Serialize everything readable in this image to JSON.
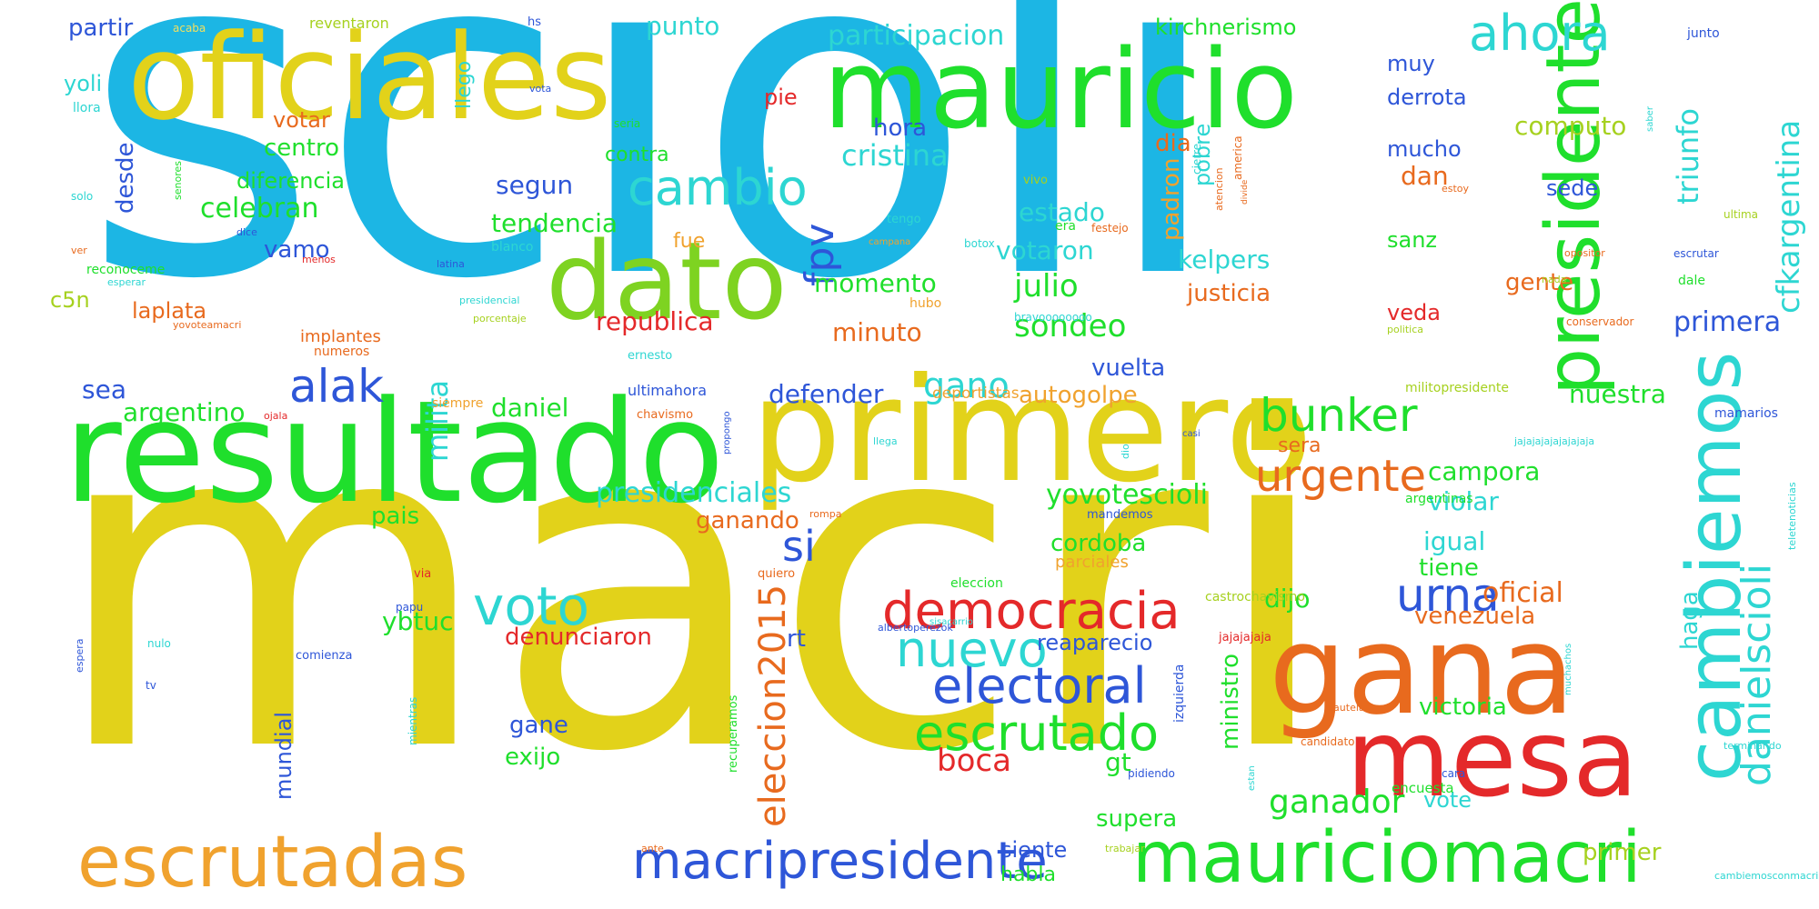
{
  "words": [
    {
      "text": "macri",
      "color": "#e2d21a"
    },
    {
      "text": "scioli",
      "color": "#1cb6e4"
    },
    {
      "text": "resultado",
      "color": "#1fdf2c"
    },
    {
      "text": "primero",
      "color": "#e2d21a"
    },
    {
      "text": "oficiales",
      "color": "#e2d21a"
    },
    {
      "text": "mauricio",
      "color": "#1fdf2c"
    },
    {
      "text": "dato",
      "color": "#7ed321"
    },
    {
      "text": "gana",
      "color": "#e86a1e"
    },
    {
      "text": "mesa",
      "color": "#e4292a"
    },
    {
      "text": "mauriciomacri",
      "color": "#1fdf2c"
    },
    {
      "text": "escrutadas",
      "color": "#f0a22e"
    },
    {
      "text": "presidente",
      "color": "#1fdf2c"
    },
    {
      "text": "cambiemos",
      "color": "#2dd6d2"
    },
    {
      "text": "macripresidente",
      "color": "#2e56d8"
    },
    {
      "text": "democracia",
      "color": "#e4292a"
    },
    {
      "text": "electoral",
      "color": "#2e56d8"
    },
    {
      "text": "escrutado",
      "color": "#1fdf2c"
    },
    {
      "text": "voto",
      "color": "#2dd6d2"
    },
    {
      "text": "nuevo",
      "color": "#2dd6d2"
    },
    {
      "text": "cambio",
      "color": "#2dd6d2"
    },
    {
      "text": "alak",
      "color": "#2e56d8"
    },
    {
      "text": "ahora",
      "color": "#2dd6d2"
    },
    {
      "text": "bunker",
      "color": "#1fdf2c"
    },
    {
      "text": "urgente",
      "color": "#e86a1e"
    },
    {
      "text": "urna",
      "color": "#2e56d8"
    },
    {
      "text": "danielscioli",
      "color": "#2dd6d2"
    },
    {
      "text": "cfkargentina",
      "color": "#2dd6d2"
    },
    {
      "text": "eleccion2015",
      "color": "#e86a1e"
    },
    {
      "text": "ganador",
      "color": "#1fdf2c"
    },
    {
      "text": "fpv",
      "color": "#2e56d8"
    },
    {
      "text": "si",
      "color": "#2e56d8"
    },
    {
      "text": "boca",
      "color": "#e4292a"
    },
    {
      "text": "julio",
      "color": "#1fdf2c"
    },
    {
      "text": "sondeo",
      "color": "#1fdf2c"
    },
    {
      "text": "cristina",
      "color": "#2dd6d2"
    },
    {
      "text": "gano",
      "color": "#2dd6d2"
    },
    {
      "text": "triunfo",
      "color": "#2dd6d2"
    },
    {
      "text": "primera",
      "color": "#2e56d8"
    },
    {
      "text": "participacion",
      "color": "#2dd6d2"
    },
    {
      "text": "punto",
      "color": "#2dd6d2"
    },
    {
      "text": "kirchnerismo",
      "color": "#1fdf2c"
    },
    {
      "text": "partir",
      "color": "#2e56d8"
    },
    {
      "text": "computo",
      "color": "#a6d11f"
    },
    {
      "text": "hora",
      "color": "#2e56d8"
    },
    {
      "text": "centro",
      "color": "#1fdf2c"
    },
    {
      "text": "segun",
      "color": "#2e56d8"
    },
    {
      "text": "tendencia",
      "color": "#1fdf2c"
    },
    {
      "text": "celebran",
      "color": "#1fdf2c"
    },
    {
      "text": "diferencia",
      "color": "#1fdf2c"
    },
    {
      "text": "vamo",
      "color": "#2e56d8"
    },
    {
      "text": "desde",
      "color": "#2e56d8"
    },
    {
      "text": "c5n",
      "color": "#a6d11f"
    },
    {
      "text": "laplata",
      "color": "#e86a1e"
    },
    {
      "text": "momento",
      "color": "#1fdf2c"
    },
    {
      "text": "republica",
      "color": "#e4292a"
    },
    {
      "text": "minuto",
      "color": "#e86a1e"
    },
    {
      "text": "estado",
      "color": "#2dd6d2"
    },
    {
      "text": "votaron",
      "color": "#2dd6d2"
    },
    {
      "text": "kelpers",
      "color": "#2dd6d2"
    },
    {
      "text": "justicia",
      "color": "#e86a1e"
    },
    {
      "text": "padron",
      "color": "#f0a22e"
    },
    {
      "text": "pobre",
      "color": "#2dd6d2"
    },
    {
      "text": "dia",
      "color": "#e86a1e"
    },
    {
      "text": "dan",
      "color": "#e86a1e"
    },
    {
      "text": "sanz",
      "color": "#1fdf2c"
    },
    {
      "text": "veda",
      "color": "#e4292a"
    },
    {
      "text": "gente",
      "color": "#e86a1e"
    },
    {
      "text": "sede",
      "color": "#2e56d8"
    },
    {
      "text": "mucho",
      "color": "#2e56d8"
    },
    {
      "text": "derrota",
      "color": "#2e56d8"
    },
    {
      "text": "muy",
      "color": "#2e56d8"
    },
    {
      "text": "yoli",
      "color": "#2dd6d2"
    },
    {
      "text": "llego",
      "color": "#2dd6d2"
    },
    {
      "text": "votar",
      "color": "#e86a1e"
    },
    {
      "text": "pie",
      "color": "#e4292a"
    },
    {
      "text": "contra",
      "color": "#1fdf2c"
    },
    {
      "text": "fue",
      "color": "#f0a22e"
    },
    {
      "text": "argentino",
      "color": "#1fdf2c"
    },
    {
      "text": "sea",
      "color": "#2e56d8"
    },
    {
      "text": "daniel",
      "color": "#1fdf2c"
    },
    {
      "text": "milita",
      "color": "#2dd6d2"
    },
    {
      "text": "defender",
      "color": "#2e56d8"
    },
    {
      "text": "autogolpe",
      "color": "#f0a22e"
    },
    {
      "text": "vuelta",
      "color": "#2e56d8"
    },
    {
      "text": "nuestra",
      "color": "#1fdf2c"
    },
    {
      "text": "campora",
      "color": "#1fdf2c"
    },
    {
      "text": "sera",
      "color": "#e86a1e"
    },
    {
      "text": "violar",
      "color": "#2dd6d2"
    },
    {
      "text": "presidenciales",
      "color": "#2dd6d2"
    },
    {
      "text": "yovotescioli",
      "color": "#1fdf2c"
    },
    {
      "text": "pais",
      "color": "#1fdf2c"
    },
    {
      "text": "ganando",
      "color": "#e86a1e"
    },
    {
      "text": "cordoba",
      "color": "#1fdf2c"
    },
    {
      "text": "igual",
      "color": "#2dd6d2"
    },
    {
      "text": "tiene",
      "color": "#1fdf2c"
    },
    {
      "text": "dijo",
      "color": "#1fdf2c"
    },
    {
      "text": "oficial",
      "color": "#e86a1e"
    },
    {
      "text": "venezuela",
      "color": "#e86a1e"
    },
    {
      "text": "haga",
      "color": "#2dd6d2"
    },
    {
      "text": "ybtuc",
      "color": "#1fdf2c"
    },
    {
      "text": "denunciaron",
      "color": "#e4292a"
    },
    {
      "text": "rt",
      "color": "#2e56d8"
    },
    {
      "text": "reaparecio",
      "color": "#2e56d8"
    },
    {
      "text": "ministro",
      "color": "#1fdf2c"
    },
    {
      "text": "victoria",
      "color": "#1fdf2c"
    },
    {
      "text": "gt",
      "color": "#1fdf2c"
    },
    {
      "text": "gane",
      "color": "#2e56d8"
    },
    {
      "text": "exijo",
      "color": "#1fdf2c"
    },
    {
      "text": "mundial",
      "color": "#2e56d8"
    },
    {
      "text": "supera",
      "color": "#1fdf2c"
    },
    {
      "text": "vote",
      "color": "#2dd6d2"
    },
    {
      "text": "siente",
      "color": "#2e56d8"
    },
    {
      "text": "habla",
      "color": "#1fdf2c"
    },
    {
      "text": "primer",
      "color": "#a6d11f"
    },
    {
      "text": "implantes",
      "color": "#e86a1e"
    },
    {
      "text": "numeros",
      "color": "#e86a1e"
    },
    {
      "text": "siempre",
      "color": "#f0a22e"
    },
    {
      "text": "ultimahora",
      "color": "#2e56d8"
    },
    {
      "text": "chavismo",
      "color": "#e86a1e"
    },
    {
      "text": "deportistas",
      "color": "#f0a22e"
    },
    {
      "text": "militopresidente",
      "color": "#a6d11f"
    },
    {
      "text": "mamarios",
      "color": "#2e56d8"
    },
    {
      "text": "argentinas",
      "color": "#1fdf2c"
    },
    {
      "text": "eleccion",
      "color": "#1fdf2c"
    },
    {
      "text": "parciales",
      "color": "#f0a22e"
    },
    {
      "text": "castrochavismo",
      "color": "#a6d11f"
    },
    {
      "text": "jajajajaja",
      "color": "#e4292a"
    },
    {
      "text": "izquierda",
      "color": "#2e56d8"
    },
    {
      "text": "encuesta",
      "color": "#1fdf2c"
    },
    {
      "text": "reventaron",
      "color": "#a6d11f"
    },
    {
      "text": "acaba",
      "color": "#f0e060"
    },
    {
      "text": "hs",
      "color": "#2e56d8"
    },
    {
      "text": "junto",
      "color": "#2e56d8"
    },
    {
      "text": "vota",
      "color": "#2e56d8"
    },
    {
      "text": "llora",
      "color": "#2dd6d2"
    },
    {
      "text": "seria",
      "color": "#1fdf2c"
    },
    {
      "text": "festejo",
      "color": "#e86a1e"
    },
    {
      "text": "america",
      "color": "#a6d11f"
    },
    {
      "text": "vivo",
      "color": "#2dd6d2"
    },
    {
      "text": "cierre",
      "color": "#e86a1e"
    },
    {
      "text": "atencion",
      "color": "#e86a1e"
    },
    {
      "text": "divide",
      "color": "#e86a1e"
    },
    {
      "text": "estoy",
      "color": "#2dd6d2"
    },
    {
      "text": "saber",
      "color": "#2dd6d2"
    },
    {
      "text": "solo",
      "color": "#1fdf2c"
    },
    {
      "text": "senores",
      "color": "#2e56d8"
    },
    {
      "text": "dice",
      "color": "#2dd6d2"
    },
    {
      "text": "tengo",
      "color": "#f0a22e"
    },
    {
      "text": "campana",
      "color": "#2dd6d2"
    },
    {
      "text": "botox",
      "color": "#1fdf2c"
    },
    {
      "text": "era",
      "color": "#a6d11f"
    },
    {
      "text": "ultima",
      "color": "#e86a1e"
    },
    {
      "text": "opositor",
      "color": "#2e56d8"
    },
    {
      "text": "escrutar",
      "color": "#e86a1e"
    },
    {
      "text": "ver",
      "color": "#e4292a"
    },
    {
      "text": "menos",
      "color": "#2e56d8"
    },
    {
      "text": "latina",
      "color": "#2dd6d2"
    },
    {
      "text": "blanco",
      "color": "#1fdf2c"
    },
    {
      "text": "reconoceme",
      "color": "#2dd6d2"
    },
    {
      "text": "esperar",
      "color": "#2dd6d2"
    },
    {
      "text": "presidencial",
      "color": "#f0a22e"
    },
    {
      "text": "hubo",
      "color": "#2dd6d2"
    },
    {
      "text": "bravoooooooo",
      "color": "#a6d11f"
    },
    {
      "text": "nada",
      "color": "#1fdf2c"
    },
    {
      "text": "dale",
      "color": "#e86a1e"
    },
    {
      "text": "yovoteamacri",
      "color": "#a6d11f"
    },
    {
      "text": "porcentaje",
      "color": "#e86a1e"
    },
    {
      "text": "conservador",
      "color": "#a6d11f"
    },
    {
      "text": "politica",
      "color": "#e4292a"
    },
    {
      "text": "ojala",
      "color": "#2dd6d2"
    },
    {
      "text": "ernesto",
      "color": "#2dd6d2"
    },
    {
      "text": "dio",
      "color": "#2e56d8"
    },
    {
      "text": "casi",
      "color": "#2dd6d2"
    },
    {
      "text": "llega",
      "color": "#2e56d8"
    },
    {
      "text": "propongo",
      "color": "#2e56d8"
    },
    {
      "text": "mandemos",
      "color": "#e86a1e"
    },
    {
      "text": "rompa",
      "color": "#2dd6d2"
    },
    {
      "text": "jajajajajajajajaja",
      "color": "#2dd6d2"
    },
    {
      "text": "teletenoticias",
      "color": "#2e56d8"
    },
    {
      "text": "espera",
      "color": "#e4292a"
    },
    {
      "text": "via",
      "color": "#e86a1e"
    },
    {
      "text": "quiero",
      "color": "#2e56d8"
    },
    {
      "text": "papu",
      "color": "#2dd6d2"
    },
    {
      "text": "nulo",
      "color": "#2e56d8"
    },
    {
      "text": "tv",
      "color": "#2e56d8"
    },
    {
      "text": "comienza",
      "color": "#2dd6d2"
    },
    {
      "text": "mientras",
      "color": "#1fdf2c"
    },
    {
      "text": "recuperamos",
      "color": "#2e56d8"
    },
    {
      "text": "albertoperezok",
      "color": "#2dd6d2"
    },
    {
      "text": "sisacarrio",
      "color": "#2dd6d2"
    },
    {
      "text": "estan",
      "color": "#e86a1e"
    },
    {
      "text": "candidato",
      "color": "#e86a1e"
    },
    {
      "text": "cautela",
      "color": "#2dd6d2"
    },
    {
      "text": "muchachos",
      "color": "#2dd6d2"
    },
    {
      "text": "terminando",
      "color": "#2e56d8"
    },
    {
      "text": "pidiendo",
      "color": "#2e56d8"
    },
    {
      "text": "cara",
      "color": "#e86a1e"
    },
    {
      "text": "ante",
      "color": "#a6d11f"
    },
    {
      "text": "trabajar",
      "color": "#2dd6d2"
    },
    {
      "text": "cambiemosconmacri",
      "color": "#a6d11f"
    }
  ]
}
